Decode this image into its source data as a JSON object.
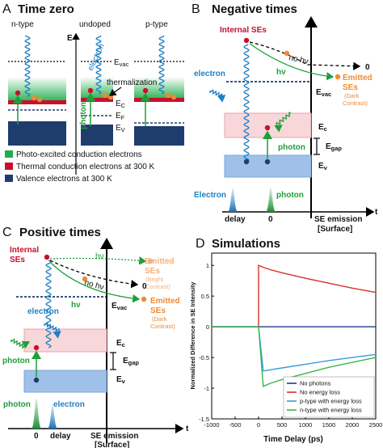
{
  "panel_a": {
    "letter": "A",
    "title": "Time zero",
    "columns": [
      "n-type",
      "undoped",
      "p-type"
    ],
    "axis_label": "E",
    "levels": {
      "vac": {
        "main": "E",
        "sub": "vac"
      },
      "c": {
        "main": "E",
        "sub": "C"
      },
      "f": {
        "main": "E",
        "sub": "F"
      },
      "v": {
        "main": "E",
        "sub": "V"
      }
    },
    "electron": "electron",
    "photon": "photon",
    "thermalization": "thermalization",
    "legend": [
      "Photo-excited conduction electrons",
      "Thermal conduction electrons at 300 K",
      "Valence electrons at 300 K"
    ]
  },
  "panel_b": {
    "letter": "B",
    "title": "Negative times",
    "internal": "Internal SEs",
    "no_hv": "no hν",
    "hv": "hν",
    "zero": "0",
    "emitted": [
      "Emitted",
      "SEs"
    ],
    "contrast": [
      "(Dark",
      "Contrast)"
    ],
    "electron": "electron",
    "levels": {
      "vac": {
        "main": "E",
        "sub": "vac"
      },
      "c": {
        "main": "E",
        "sub": "c"
      },
      "gap": {
        "main": "E",
        "sub": "gap"
      },
      "v": {
        "main": "E",
        "sub": "v"
      }
    },
    "photon": "photon",
    "pulse_electron": "Electron",
    "pulse_photon": "photon",
    "delay": "delay",
    "time_zero": "0",
    "surface": [
      "SE emission",
      "[Surface]"
    ],
    "t": "t"
  },
  "panel_c": {
    "letter": "C",
    "title": "Positive times",
    "internal": [
      "Internal",
      "SEs"
    ],
    "hv_bright": "hν",
    "emitted_bright": [
      "Emitted",
      "SEs"
    ],
    "contrast_bright": [
      "(Bright",
      "Contrast)"
    ],
    "no_hv": "no hν",
    "zero": "0",
    "hv_dark": "hν",
    "emitted_dark": [
      "Emitted",
      "SEs"
    ],
    "contrast_dark": [
      "(Dark",
      "Contrast)"
    ],
    "electron": "electron",
    "levels": {
      "vac": {
        "main": "E",
        "sub": "vac"
      },
      "c": {
        "main": "E",
        "sub": "c"
      },
      "gap": {
        "main": "E",
        "sub": "gap"
      },
      "v": {
        "main": "E",
        "sub": "v"
      }
    },
    "photon": "photon",
    "pulse_photon": "photon",
    "pulse_electron": "electron",
    "time_zero": "0",
    "delay": "delay",
    "surface": [
      "SE emission",
      "[Surface]"
    ],
    "t": "t"
  },
  "chart_data": {
    "type": "line",
    "letter": "D",
    "title": "Simulations",
    "x_label": "Time Delay (ps)",
    "y_label": "Normalized Difference in SE Intensity",
    "x": [
      -1000,
      -500,
      0,
      0,
      100,
      250,
      500,
      1000,
      1500,
      2000,
      2500
    ],
    "series": [
      {
        "name": "No photons",
        "color": "#1f3c8f",
        "values": [
          0,
          0,
          0,
          0,
          0,
          0,
          0,
          0,
          0,
          0,
          0
        ]
      },
      {
        "name": "No energy loss",
        "color": "#d9312b",
        "values": [
          0,
          0,
          0,
          1,
          0.97,
          0.93,
          0.88,
          0.79,
          0.71,
          0.63,
          0.56
        ]
      },
      {
        "name": "p-type with energy loss",
        "color": "#3a9ad9",
        "values": [
          0,
          0,
          0,
          0,
          -0.72,
          -0.7,
          -0.67,
          -0.61,
          -0.55,
          -0.5,
          -0.45
        ]
      },
      {
        "name": "n-type with energy loss",
        "color": "#3cb44b",
        "values": [
          0,
          0,
          0,
          0,
          -0.97,
          -0.92,
          -0.86,
          -0.76,
          -0.66,
          -0.58,
          -0.5
        ]
      }
    ],
    "xlim": [
      -1000,
      2500
    ],
    "xticks": [
      -1000,
      -500,
      0,
      500,
      1000,
      1500,
      2000,
      2500
    ],
    "ylim": [
      -1.5,
      1.2
    ],
    "yticks": [
      -1.5,
      -1,
      -0.5,
      0,
      0.5,
      1
    ],
    "legend_loc": "lower right"
  }
}
